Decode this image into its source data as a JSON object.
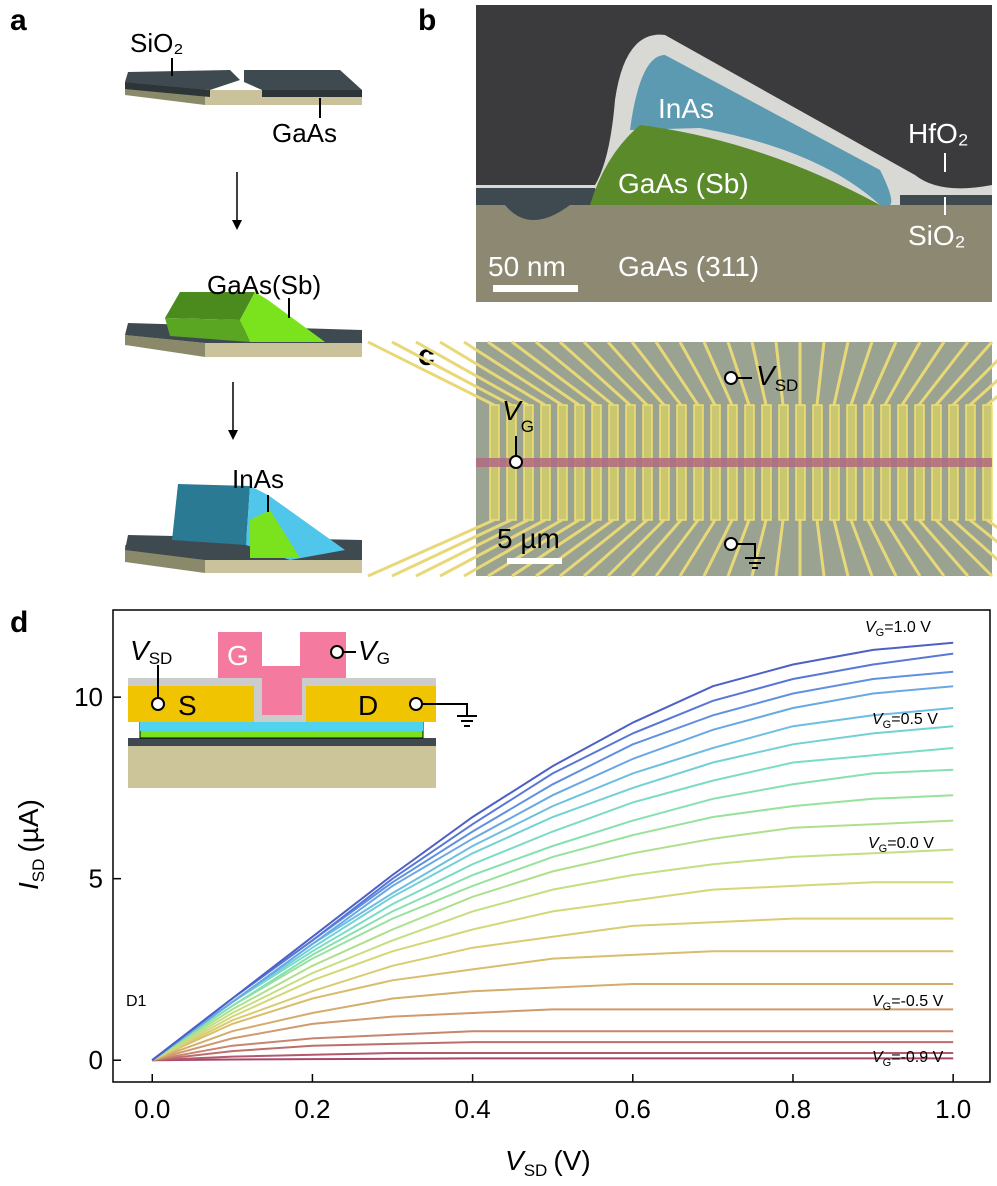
{
  "panels": {
    "a": {
      "letter": "a",
      "labels": [
        "SiO₂",
        "GaAs",
        "GaAs(Sb)",
        "InAs"
      ]
    },
    "b": {
      "letter": "b",
      "labels": [
        "InAs",
        "GaAs (Sb)",
        "HfO₂",
        "SiO₂",
        "GaAs (311)"
      ],
      "scale_bar": "50 nm"
    },
    "c": {
      "letter": "c",
      "vsd": {
        "symbol": "V",
        "subscript": "SD"
      },
      "vg": {
        "symbol": "V",
        "subscript": "G"
      },
      "scale_bar": "5 µm"
    },
    "d": {
      "letter": "d"
    }
  },
  "inset": {
    "vsd": {
      "symbol": "V",
      "subscript": "SD"
    },
    "vg": {
      "symbol": "V",
      "subscript": "G"
    },
    "gate": "G",
    "source": "S",
    "drain": "D"
  },
  "chart_data": {
    "type": "line",
    "device": "D1",
    "x_label": {
      "symbol": "V",
      "subscript": "SD",
      "unit": "(V)"
    },
    "y_label": {
      "symbol": "I",
      "subscript": "SD",
      "unit": "(µA)"
    },
    "xlim": [
      -0.049,
      1.046
    ],
    "ylim": [
      -0.6,
      12.4
    ],
    "xticks": [
      {
        "value": 0,
        "label": "0.0"
      },
      {
        "value": 0.2,
        "label": "0.2"
      },
      {
        "value": 0.4,
        "label": "0.4"
      },
      {
        "value": 0.6,
        "label": "0.6"
      },
      {
        "value": 0.8,
        "label": "0.8"
      },
      {
        "value": 1,
        "label": "1.0"
      }
    ],
    "yticks": [
      0,
      5,
      10
    ],
    "grid": false,
    "x": [
      0,
      0.1,
      0.2,
      0.3,
      0.4,
      0.5,
      0.6,
      0.7,
      0.8,
      0.9,
      1.0
    ],
    "series": [
      {
        "color": "#a8476e",
        "values": [
          0,
          0.02,
          0.03,
          0.04,
          0.05,
          0.05,
          0.05,
          0.05,
          0.05,
          0.05,
          0.05
        ]
      },
      {
        "color": "#b25a6c",
        "values": [
          0,
          0.1,
          0.15,
          0.2,
          0.2,
          0.2,
          0.2,
          0.2,
          0.2,
          0.2,
          0.2
        ]
      },
      {
        "color": "#bd6e6c",
        "values": [
          0,
          0.25,
          0.4,
          0.45,
          0.5,
          0.5,
          0.5,
          0.5,
          0.5,
          0.5,
          0.5
        ]
      },
      {
        "color": "#c7846e",
        "values": [
          0,
          0.4,
          0.6,
          0.7,
          0.8,
          0.8,
          0.8,
          0.8,
          0.8,
          0.8,
          0.8
        ]
      },
      {
        "color": "#cf9a6e",
        "values": [
          0,
          0.6,
          1.0,
          1.2,
          1.3,
          1.4,
          1.4,
          1.4,
          1.4,
          1.4,
          1.4
        ]
      },
      {
        "color": "#d4ac6c",
        "values": [
          0,
          0.8,
          1.3,
          1.7,
          1.9,
          2.0,
          2.1,
          2.1,
          2.1,
          2.1,
          2.1
        ]
      },
      {
        "color": "#d8bd6c",
        "values": [
          0,
          1.0,
          1.7,
          2.2,
          2.5,
          2.8,
          2.9,
          3.0,
          3.0,
          3.0,
          3.0
        ]
      },
      {
        "color": "#d9cc70",
        "values": [
          0,
          1.1,
          1.9,
          2.6,
          3.1,
          3.4,
          3.7,
          3.8,
          3.9,
          3.9,
          3.9
        ]
      },
      {
        "color": "#d3d876",
        "values": [
          0,
          1.2,
          2.2,
          3.0,
          3.6,
          4.1,
          4.4,
          4.7,
          4.8,
          4.9,
          4.9
        ]
      },
      {
        "color": "#c4de80",
        "values": [
          0,
          1.3,
          2.4,
          3.3,
          4.1,
          4.7,
          5.1,
          5.4,
          5.6,
          5.7,
          5.8
        ]
      },
      {
        "color": "#aee08c",
        "values": [
          0,
          1.4,
          2.6,
          3.6,
          4.5,
          5.2,
          5.7,
          6.1,
          6.4,
          6.5,
          6.6
        ]
      },
      {
        "color": "#98e29c",
        "values": [
          0,
          1.5,
          2.8,
          3.9,
          4.8,
          5.6,
          6.2,
          6.7,
          7.0,
          7.2,
          7.3
        ]
      },
      {
        "color": "#86e0b0",
        "values": [
          0,
          1.5,
          2.9,
          4.1,
          5.1,
          5.9,
          6.6,
          7.2,
          7.6,
          7.9,
          8.0
        ]
      },
      {
        "color": "#7adcc4",
        "values": [
          0,
          1.6,
          3.0,
          4.3,
          5.4,
          6.3,
          7.1,
          7.7,
          8.2,
          8.4,
          8.6
        ]
      },
      {
        "color": "#72d0d6",
        "values": [
          0,
          1.6,
          3.1,
          4.5,
          5.7,
          6.7,
          7.5,
          8.2,
          8.7,
          9.0,
          9.2
        ]
      },
      {
        "color": "#6dbee0",
        "values": [
          0,
          1.6,
          3.2,
          4.6,
          5.9,
          7.0,
          7.9,
          8.6,
          9.2,
          9.5,
          9.7
        ]
      },
      {
        "color": "#69a8e2",
        "values": [
          0,
          1.6,
          3.2,
          4.8,
          6.1,
          7.3,
          8.3,
          9.1,
          9.7,
          10.1,
          10.3
        ]
      },
      {
        "color": "#6290e0",
        "values": [
          0,
          1.7,
          3.3,
          4.9,
          6.3,
          7.6,
          8.7,
          9.5,
          10.1,
          10.5,
          10.7
        ]
      },
      {
        "color": "#5878d6",
        "values": [
          0,
          1.7,
          3.3,
          5.0,
          6.5,
          7.9,
          9.0,
          9.9,
          10.5,
          10.9,
          11.2
        ]
      },
      {
        "color": "#4c60c6",
        "values": [
          0,
          1.7,
          3.4,
          5.1,
          6.7,
          8.1,
          9.3,
          10.3,
          10.9,
          11.3,
          11.5
        ]
      }
    ],
    "annotations": [
      {
        "symbol": "V",
        "subscript": "G",
        "text": "=1.0 V"
      },
      {
        "symbol": "V",
        "subscript": "G",
        "text": "=0.5 V"
      },
      {
        "symbol": "V",
        "subscript": "G",
        "text": "=0.0 V"
      },
      {
        "symbol": "V",
        "subscript": "G",
        "text": "=-0.5 V"
      },
      {
        "symbol": "V",
        "subscript": "G",
        "text": "=-0.9 V"
      }
    ]
  }
}
